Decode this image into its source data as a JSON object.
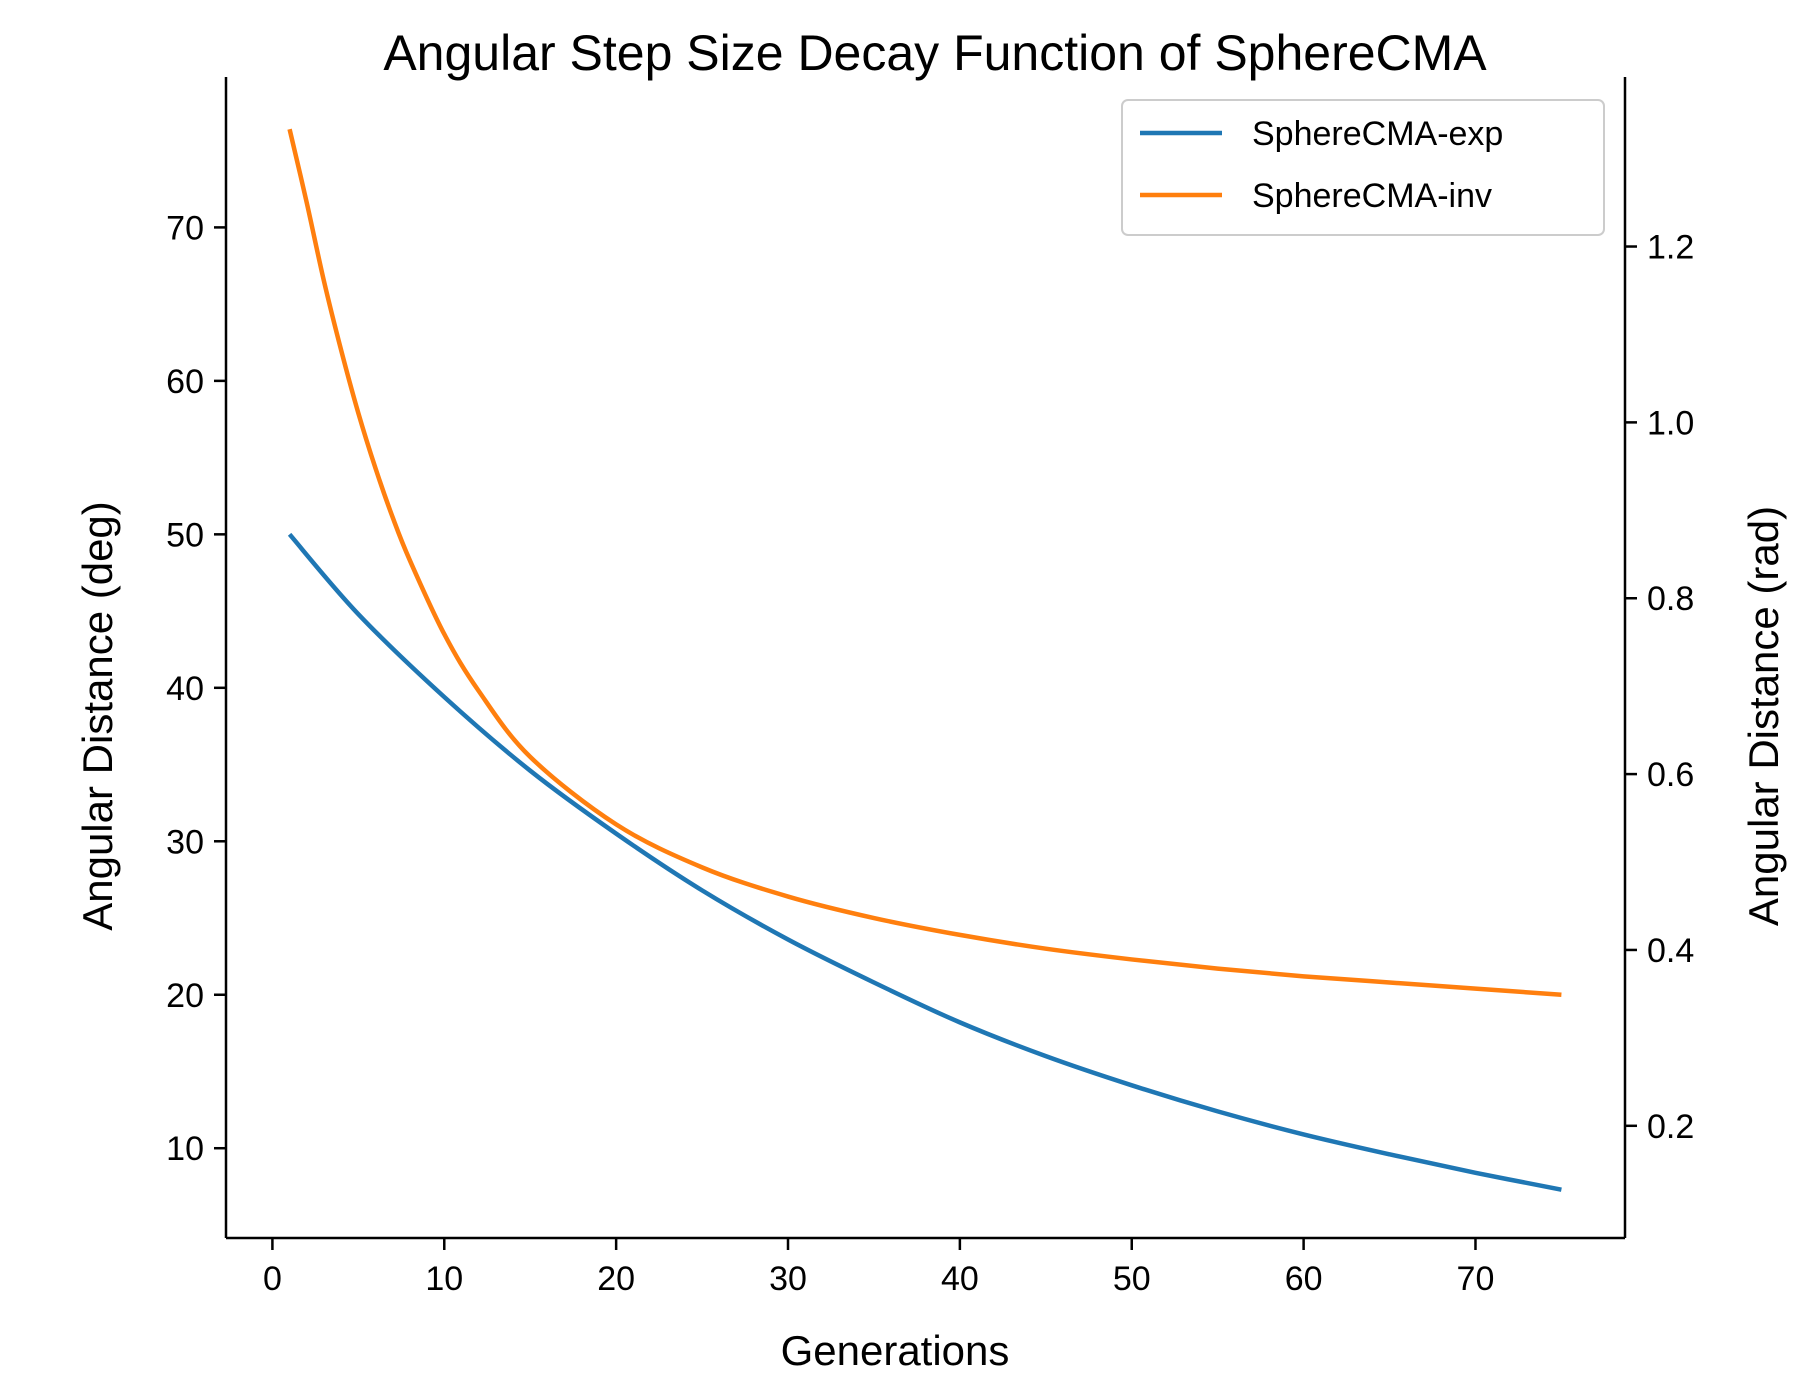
{
  "chart_data": {
    "type": "line",
    "title": "Angular Step Size Decay Function of SphereCMA",
    "xlabel": "Generations",
    "ylabel": "Angular Distance (deg)",
    "ylabel_right": "Angular Distance (rad)",
    "xlim": [
      -2.7,
      78.7
    ],
    "ylim": [
      4.15,
      79.8
    ],
    "ylim_right_rad": [
      0.0724,
      1.3928
    ],
    "xticks": [
      0,
      10,
      20,
      30,
      40,
      50,
      60,
      70
    ],
    "yticks": [
      10,
      20,
      30,
      40,
      50,
      60,
      70
    ],
    "yticks_right": [
      "0.2",
      "0.4",
      "0.6",
      "0.8",
      "1.0",
      "1.2"
    ],
    "legend_position": "top-right",
    "series": [
      {
        "name": "SphereCMA-exp",
        "color": "#1f77b4",
        "x": [
          1,
          5,
          10,
          15,
          20,
          25,
          30,
          35,
          40,
          45,
          50,
          55,
          60,
          65,
          70,
          75
        ],
        "y": [
          50.0,
          44.8,
          39.4,
          34.6,
          30.5,
          26.8,
          23.6,
          20.8,
          18.2,
          16.0,
          14.1,
          12.4,
          10.9,
          9.6,
          8.4,
          7.3
        ]
      },
      {
        "name": "SphereCMA-inv",
        "color": "#ff7f0e",
        "x": [
          1,
          2,
          3,
          4,
          5,
          6,
          7,
          8,
          10,
          12,
          15,
          20,
          25,
          30,
          35,
          40,
          45,
          50,
          55,
          60,
          65,
          70,
          75
        ],
        "y": [
          76.4,
          71.6,
          66.5,
          62.0,
          57.9,
          54.3,
          51.1,
          48.3,
          43.5,
          39.8,
          35.5,
          31.1,
          28.3,
          26.4,
          25.0,
          23.9,
          23.0,
          22.3,
          21.7,
          21.2,
          20.8,
          20.4,
          20.0
        ]
      }
    ]
  }
}
